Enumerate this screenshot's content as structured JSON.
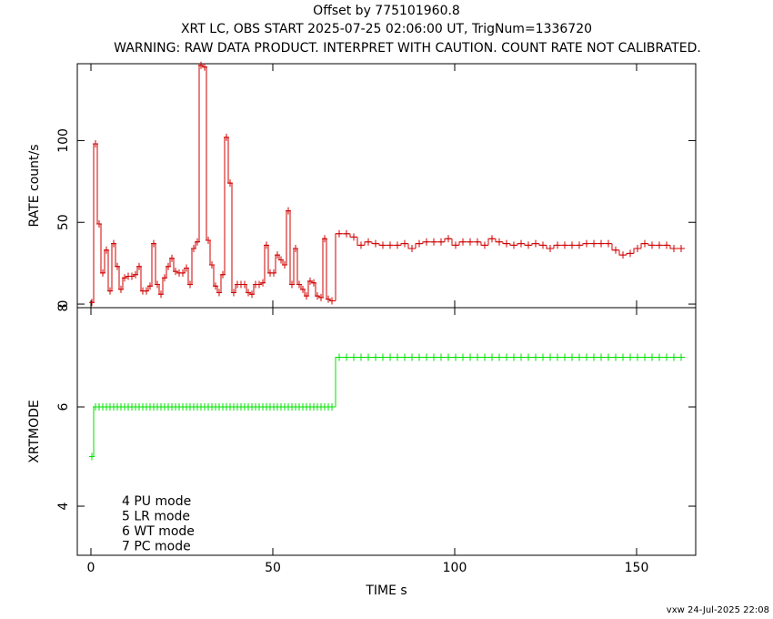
{
  "chart_data": [
    {
      "type": "step",
      "title": "Offset by 775101960.8",
      "subtitle": [
        "XRT LC, OBS START 2025-07-25 02:06:00 UT, TrigNum=1336720",
        "WARNING: RAW DATA PRODUCT. INTERPRET WITH CAUTION. COUNT RATE NOT CALIBRATED."
      ],
      "ylabel": "RATE  count/s",
      "x": [
        0.25,
        1.25,
        2.25,
        3.25,
        4.25,
        5.25,
        6.25,
        7.25,
        8.25,
        9.25,
        10.25,
        11.25,
        12.25,
        13.25,
        14.25,
        15.25,
        16.25,
        17.25,
        18.25,
        19.25,
        20.25,
        21.25,
        22.25,
        23.25,
        24.25,
        25.25,
        26.25,
        27.25,
        28.25,
        29.25,
        30.25,
        31.25,
        32.25,
        33.25,
        34.25,
        35.25,
        36.25,
        37.25,
        38.25,
        39.25,
        40.25,
        41.25,
        42.25,
        43.25,
        44.25,
        45.25,
        46.25,
        47.25,
        48.25,
        49.25,
        50.25,
        51.25,
        52.25,
        53.25,
        54.25,
        55.25,
        56.25,
        57.25,
        58.25,
        59.25,
        60.25,
        61.25,
        62.25,
        63.25,
        64.25,
        65.25,
        66.25,
        68.25,
        70.25,
        72.25,
        74.25,
        76.25,
        78.25,
        80.25,
        82.25,
        84.25,
        86.25,
        88.25,
        90.25,
        92.25,
        94.25,
        96.25,
        98.25,
        100.25,
        102.25,
        104.25,
        106.25,
        108.25,
        110.25,
        112.25,
        114.25,
        116.25,
        118.25,
        120.25,
        122.25,
        124.25,
        126.25,
        128.25,
        130.25,
        132.25,
        134.25,
        136.25,
        138.25,
        140.25,
        142.25,
        144.25,
        146.25,
        148.25,
        150.25,
        152.25,
        154.25,
        156.25,
        158.25,
        160.25,
        162.25
      ],
      "series": [
        {
          "color": "#d00000",
          "values": [
            1,
            98,
            49,
            19,
            33,
            8,
            37,
            23,
            9,
            16,
            17,
            17,
            18,
            23,
            8,
            8,
            11,
            37,
            12,
            6,
            16,
            23,
            28,
            20,
            19,
            19,
            22,
            12,
            34,
            38,
            146,
            145,
            39,
            24,
            11,
            7,
            18,
            102,
            74,
            7,
            12,
            12,
            12,
            7,
            6,
            12,
            12,
            13,
            36,
            19,
            19,
            30,
            27,
            24,
            57,
            12,
            34,
            12,
            9,
            5,
            14,
            13,
            5,
            4,
            40,
            3,
            2,
            43,
            43,
            41,
            36,
            38,
            37,
            36,
            36,
            36,
            37,
            34,
            37,
            38,
            38,
            38,
            40,
            36,
            38,
            38,
            38,
            36,
            40,
            38,
            37,
            36,
            37,
            36,
            37,
            36,
            34,
            36,
            36,
            36,
            36,
            37,
            37,
            37,
            37,
            33,
            30,
            31,
            34,
            37,
            36,
            36,
            36,
            34,
            34
          ]
        }
      ],
      "xlim": [
        -3.75,
        166.25
      ],
      "ylim": [
        -2.2,
        147
      ],
      "xticks": [
        0,
        50,
        100,
        150
      ],
      "yticks": [
        0,
        50,
        100
      ]
    },
    {
      "type": "step",
      "ylabel": "XRTMODE",
      "xlabel": "TIME  s",
      "annotations": [
        "4 PU mode",
        "5 LR mode",
        "6 WT mode",
        "7 PC mode"
      ],
      "x": [
        0.25,
        1.25,
        2.25,
        3.25,
        4.25,
        5.25,
        6.25,
        7.25,
        8.25,
        9.25,
        10.25,
        11.25,
        12.25,
        13.25,
        14.25,
        15.25,
        16.25,
        17.25,
        18.25,
        19.25,
        20.25,
        21.25,
        22.25,
        23.25,
        24.25,
        25.25,
        26.25,
        27.25,
        28.25,
        29.25,
        30.25,
        31.25,
        32.25,
        33.25,
        34.25,
        35.25,
        36.25,
        37.25,
        38.25,
        39.25,
        40.25,
        41.25,
        42.25,
        43.25,
        44.25,
        45.25,
        46.25,
        47.25,
        48.25,
        49.25,
        50.25,
        51.25,
        52.25,
        53.25,
        54.25,
        55.25,
        56.25,
        57.25,
        58.25,
        59.25,
        60.25,
        61.25,
        62.25,
        63.25,
        64.25,
        65.25,
        66.25,
        68.25,
        70.25,
        72.25,
        74.25,
        76.25,
        78.25,
        80.25,
        82.25,
        84.25,
        86.25,
        88.25,
        90.25,
        92.25,
        94.25,
        96.25,
        98.25,
        100.25,
        102.25,
        104.25,
        106.25,
        108.25,
        110.25,
        112.25,
        114.25,
        116.25,
        118.25,
        120.25,
        122.25,
        124.25,
        126.25,
        128.25,
        130.25,
        132.25,
        134.25,
        136.25,
        138.25,
        140.25,
        142.25,
        144.25,
        146.25,
        148.25,
        150.25,
        152.25,
        154.25,
        156.25,
        158.25,
        160.25,
        162.25
      ],
      "series": [
        {
          "color": "#00e000",
          "values": [
            5,
            6,
            6,
            6,
            6,
            6,
            6,
            6,
            6,
            6,
            6,
            6,
            6,
            6,
            6,
            6,
            6,
            6,
            6,
            6,
            6,
            6,
            6,
            6,
            6,
            6,
            6,
            6,
            6,
            6,
            6,
            6,
            6,
            6,
            6,
            6,
            6,
            6,
            6,
            6,
            6,
            6,
            6,
            6,
            6,
            6,
            6,
            6,
            6,
            6,
            6,
            6,
            6,
            6,
            6,
            6,
            6,
            6,
            6,
            6,
            6,
            6,
            6,
            6,
            6,
            6,
            6,
            7,
            7,
            7,
            7,
            7,
            7,
            7,
            7,
            7,
            7,
            7,
            7,
            7,
            7,
            7,
            7,
            7,
            7,
            7,
            7,
            7,
            7,
            7,
            7,
            7,
            7,
            7,
            7,
            7,
            7,
            7,
            7,
            7,
            7,
            7,
            7,
            7,
            7,
            7,
            7,
            7,
            7,
            7,
            7,
            7,
            7,
            7,
            7
          ]
        }
      ],
      "xlim": [
        -3.75,
        166.25
      ],
      "ylim": [
        3.01,
        8.0
      ],
      "xticks": [
        0,
        50,
        100,
        150
      ],
      "yticks": [
        4,
        6,
        8
      ]
    }
  ],
  "footer": "vxw 24-Jul-2025 22:08"
}
